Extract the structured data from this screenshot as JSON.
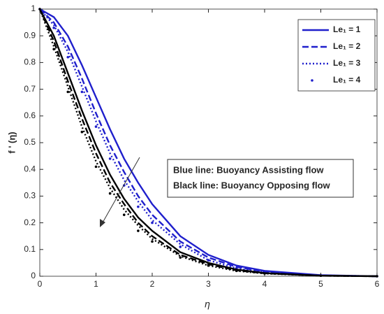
{
  "chart_data": {
    "type": "line",
    "x_label": "η",
    "y_label": "f ' (η)",
    "x": [
      0,
      0.25,
      0.5,
      0.75,
      1,
      1.25,
      1.5,
      1.75,
      2,
      2.5,
      3,
      3.5,
      4,
      5,
      6
    ],
    "xlim": [
      0,
      6
    ],
    "xticks": [
      0,
      1,
      2,
      3,
      4,
      5,
      6
    ],
    "ylim": [
      0,
      1
    ],
    "yticks": [
      0,
      0.1,
      0.2,
      0.3,
      0.4,
      0.5,
      0.6,
      0.7,
      0.8,
      0.9,
      1
    ],
    "legend": "top-right",
    "annotations": [
      "Blue line: Buoyancy Assisting flow",
      "Black line: Buoyancy Opposing flow"
    ],
    "series": [
      {
        "name": "Le₁ = 1",
        "color": "#1f1fcc",
        "linestyle": "solid",
        "values": [
          1,
          0.97,
          0.9,
          0.79,
          0.67,
          0.55,
          0.44,
          0.35,
          0.27,
          0.15,
          0.08,
          0.04,
          0.02,
          0.004,
          0
        ]
      },
      {
        "name": "Le₁ = 2",
        "color": "#1f1fcc",
        "linestyle": "dashed",
        "values": [
          1,
          0.95,
          0.86,
          0.74,
          0.61,
          0.49,
          0.39,
          0.3,
          0.23,
          0.13,
          0.07,
          0.035,
          0.017,
          0.003,
          0
        ]
      },
      {
        "name": "Le₁ = 3",
        "color": "#1f1fcc",
        "linestyle": "dotted",
        "values": [
          1,
          0.94,
          0.84,
          0.71,
          0.58,
          0.46,
          0.36,
          0.28,
          0.21,
          0.12,
          0.06,
          0.03,
          0.015,
          0.003,
          0
        ]
      },
      {
        "name": "Le₁ = 4",
        "color": "#1f1fcc",
        "linestyle": "point",
        "values": [
          1,
          0.93,
          0.82,
          0.69,
          0.56,
          0.44,
          0.34,
          0.26,
          0.2,
          0.11,
          0.06,
          0.03,
          0.014,
          0.003,
          0
        ]
      },
      {
        "color": "#000000",
        "linestyle": "solid",
        "values": [
          1,
          0.9,
          0.76,
          0.62,
          0.49,
          0.38,
          0.29,
          0.22,
          0.17,
          0.09,
          0.05,
          0.025,
          0.012,
          0.002,
          0
        ]
      },
      {
        "color": "#000000",
        "linestyle": "dashed",
        "values": [
          1,
          0.88,
          0.73,
          0.59,
          0.46,
          0.35,
          0.27,
          0.2,
          0.15,
          0.08,
          0.045,
          0.022,
          0.011,
          0.002,
          0
        ]
      },
      {
        "color": "#000000",
        "linestyle": "dotted",
        "values": [
          1,
          0.86,
          0.71,
          0.56,
          0.43,
          0.33,
          0.25,
          0.19,
          0.14,
          0.075,
          0.04,
          0.02,
          0.01,
          0.002,
          0
        ]
      },
      {
        "color": "#000000",
        "linestyle": "point",
        "values": [
          1,
          0.85,
          0.69,
          0.54,
          0.41,
          0.31,
          0.23,
          0.17,
          0.13,
          0.07,
          0.04,
          0.02,
          0.01,
          0.002,
          0
        ]
      }
    ]
  }
}
